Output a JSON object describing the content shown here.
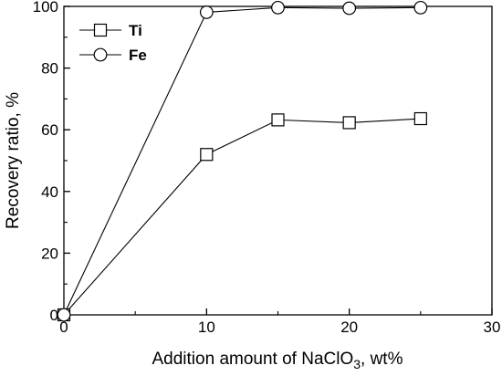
{
  "chart_data": {
    "type": "line",
    "title": "",
    "xlabel": {
      "main": "Addition amount of  NaClO",
      "subscript": "3",
      "suffix": ", wt%"
    },
    "ylabel": "Recovery ratio, %",
    "xlim": [
      0,
      30
    ],
    "ylim": [
      0,
      100
    ],
    "x_major_ticks": [
      0,
      10,
      20,
      30
    ],
    "x_tick_labels": [
      "0",
      "10",
      "20",
      "30"
    ],
    "x_minor_ticks": [
      5,
      15,
      25
    ],
    "y_major_ticks": [
      0,
      20,
      40,
      60,
      80,
      100
    ],
    "y_tick_labels": [
      "0",
      "20",
      "40",
      "60",
      "80",
      "100"
    ],
    "y_minor_ticks": [
      10,
      30,
      50,
      70,
      90
    ],
    "grid": false,
    "legend_position": "top-left",
    "series": [
      {
        "name": "Ti",
        "marker": "square",
        "x": [
          0,
          10,
          15,
          20,
          25
        ],
        "y": [
          0,
          52.0,
          63.2,
          62.3,
          63.6
        ]
      },
      {
        "name": "Fe",
        "marker": "circle",
        "x": [
          0,
          10,
          15,
          20,
          25
        ],
        "y": [
          0,
          98.1,
          99.6,
          99.4,
          99.6
        ]
      }
    ],
    "colors": {
      "line": "#000000",
      "marker_fill": "#ffffff",
      "axis": "#000000"
    }
  }
}
